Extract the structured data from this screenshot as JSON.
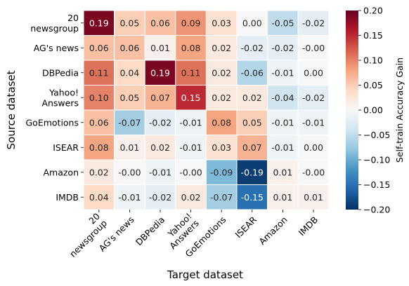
{
  "chart_data": {
    "type": "heatmap",
    "xlabel": "Target dataset",
    "ylabel": "Source dataset",
    "colorbar_label": "Self-train Accuracy Gain",
    "colorbar_ticks": [
      "0.20",
      "0.15",
      "0.10",
      "0.05",
      "0.00",
      "−0.05",
      "−0.10",
      "−0.15",
      "−0.20"
    ],
    "vmin": -0.2,
    "vmax": 0.2,
    "colormap": "RdBu_r",
    "rows": [
      "20 newsgroup",
      "AG's news",
      "DBPedia",
      "Yahoo! Answers",
      "GoEmotions",
      "ISEAR",
      "Amazon",
      "IMDB"
    ],
    "columns": [
      "20 newsgroup",
      "AG's news",
      "DBPedia",
      "Yahoo! Answers",
      "GoEmotions",
      "ISEAR",
      "Amazon",
      "IMDB"
    ],
    "row_tick_lines": [
      [
        "20",
        "newsgroup"
      ],
      [
        "AG's news"
      ],
      [
        "DBPedia"
      ],
      [
        "Yahoo!",
        "Answers"
      ],
      [
        "GoEmotions"
      ],
      [
        "ISEAR"
      ],
      [
        "Amazon"
      ],
      [
        "IMDB"
      ]
    ],
    "col_tick_lines": [
      [
        "20",
        "newsgroup"
      ],
      [
        "AG's news"
      ],
      [
        "DBPedia"
      ],
      [
        "Yahoo!",
        "Answers"
      ],
      [
        "GoEmotions"
      ],
      [
        "ISEAR"
      ],
      [
        "Amazon"
      ],
      [
        "IMDB"
      ]
    ],
    "values": [
      [
        0.19,
        0.05,
        0.06,
        0.09,
        0.03,
        0.0,
        -0.05,
        -0.02
      ],
      [
        0.06,
        0.06,
        0.01,
        0.08,
        0.02,
        -0.02,
        -0.02,
        -0.0
      ],
      [
        0.11,
        0.04,
        0.19,
        0.11,
        0.02,
        -0.06,
        -0.01,
        0.0
      ],
      [
        0.1,
        0.05,
        0.07,
        0.15,
        0.02,
        0.02,
        -0.04,
        -0.02
      ],
      [
        0.06,
        -0.07,
        -0.02,
        -0.01,
        0.08,
        0.05,
        -0.01,
        -0.01
      ],
      [
        0.08,
        0.01,
        0.02,
        -0.01,
        0.03,
        0.07,
        -0.01,
        0.0
      ],
      [
        0.02,
        -0.0,
        -0.01,
        -0.0,
        -0.09,
        -0.19,
        0.01,
        -0.0
      ],
      [
        0.04,
        -0.01,
        -0.02,
        0.02,
        -0.07,
        -0.15,
        0.01,
        0.01
      ]
    ],
    "value_labels": [
      [
        "0.19",
        "0.05",
        "0.06",
        "0.09",
        "0.03",
        "0.00",
        "-0.05",
        "-0.02"
      ],
      [
        "0.06",
        "0.06",
        "0.01",
        "0.08",
        "0.02",
        "-0.02",
        "-0.02",
        "-0.00"
      ],
      [
        "0.11",
        "0.04",
        "0.19",
        "0.11",
        "0.02",
        "-0.06",
        "-0.01",
        "0.00"
      ],
      [
        "0.10",
        "0.05",
        "0.07",
        "0.15",
        "0.02",
        "0.02",
        "-0.04",
        "-0.02"
      ],
      [
        "0.06",
        "-0.07",
        "-0.02",
        "-0.01",
        "0.08",
        "0.05",
        "-0.01",
        "-0.01"
      ],
      [
        "0.08",
        "0.01",
        "0.02",
        "-0.01",
        "0.03",
        "0.07",
        "-0.01",
        "0.00"
      ],
      [
        "0.02",
        "-0.00",
        "-0.01",
        "-0.00",
        "-0.09",
        "-0.19",
        "0.01",
        "-0.00"
      ],
      [
        "0.04",
        "-0.01",
        "-0.02",
        "0.02",
        "-0.07",
        "-0.15",
        "0.01",
        "0.01"
      ]
    ]
  }
}
